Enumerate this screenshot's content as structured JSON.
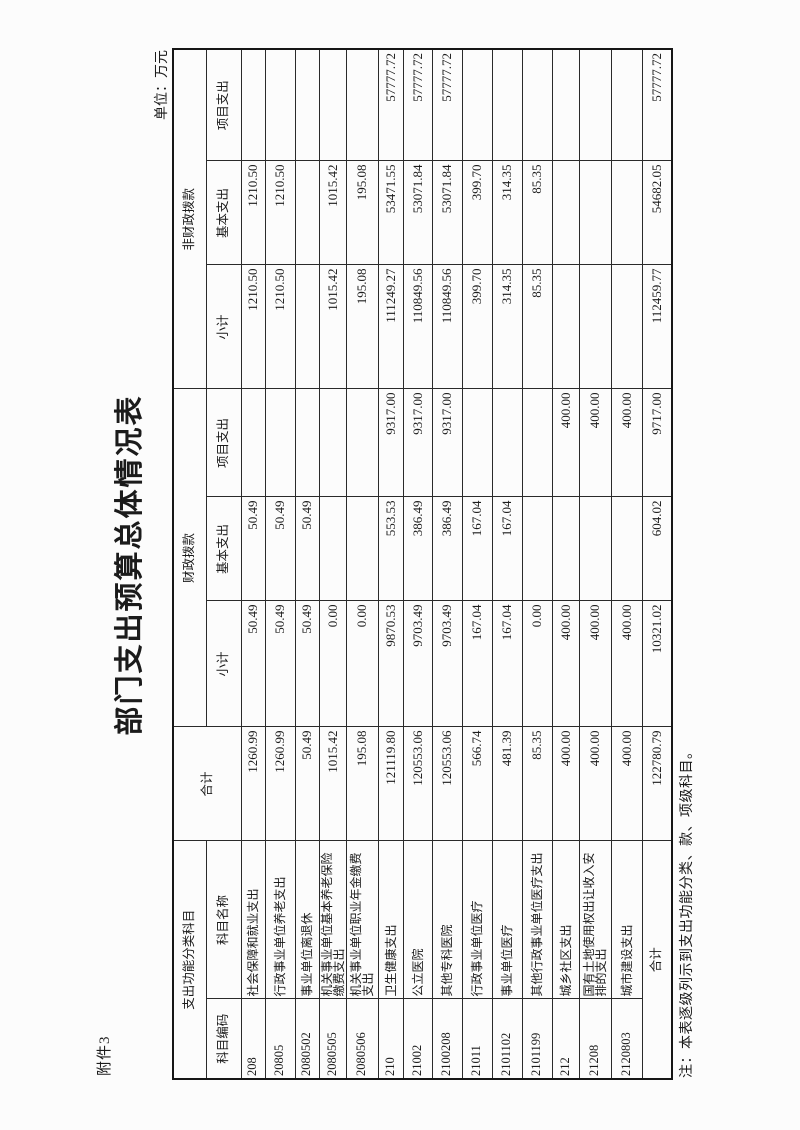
{
  "page": {
    "attachment_label": "附件3",
    "title": "部门支出预算总体情况表",
    "unit_label": "单位：万元",
    "note": "注：本表逐级列示到支出功能分类、款、项级科目。"
  },
  "table": {
    "header": {
      "func_group": "支出功能分类科目",
      "code": "科目编码",
      "name": "科目名称",
      "total": "合计",
      "fiscal_group": "财政拨款",
      "nonfiscal_group": "非财政拨款",
      "subtotal": "小计",
      "basic": "基本支出",
      "project": "项目支出"
    },
    "rows": [
      {
        "code": "208",
        "name": "社会保障和就业支出",
        "total": "1260.99",
        "f_sub": "50.49",
        "f_basic": "50.49",
        "f_proj": "",
        "n_sub": "1210.50",
        "n_basic": "1210.50",
        "n_proj": ""
      },
      {
        "code": "20805",
        "name": "行政事业单位养老支出",
        "total": "1260.99",
        "f_sub": "50.49",
        "f_basic": "50.49",
        "f_proj": "",
        "n_sub": "1210.50",
        "n_basic": "1210.50",
        "n_proj": ""
      },
      {
        "code": "2080502",
        "name": "事业单位离退休",
        "total": "50.49",
        "f_sub": "50.49",
        "f_basic": "50.49",
        "f_proj": "",
        "n_sub": "",
        "n_basic": "",
        "n_proj": ""
      },
      {
        "code": "2080505",
        "name": "机关事业单位基本养老保险缴费支出",
        "total": "1015.42",
        "f_sub": "0.00",
        "f_basic": "",
        "f_proj": "",
        "n_sub": "1015.42",
        "n_basic": "1015.42",
        "n_proj": ""
      },
      {
        "code": "2080506",
        "name": "机关事业单位职业年金缴费支出",
        "total": "195.08",
        "f_sub": "0.00",
        "f_basic": "",
        "f_proj": "",
        "n_sub": "195.08",
        "n_basic": "195.08",
        "n_proj": ""
      },
      {
        "code": "210",
        "name": "卫生健康支出",
        "total": "121119.80",
        "f_sub": "9870.53",
        "f_basic": "553.53",
        "f_proj": "9317.00",
        "n_sub": "111249.27",
        "n_basic": "53471.55",
        "n_proj": "57777.72"
      },
      {
        "code": "21002",
        "name": "公立医院",
        "total": "120553.06",
        "f_sub": "9703.49",
        "f_basic": "386.49",
        "f_proj": "9317.00",
        "n_sub": "110849.56",
        "n_basic": "53071.84",
        "n_proj": "57777.72"
      },
      {
        "code": "2100208",
        "name": "其他专科医院",
        "total": "120553.06",
        "f_sub": "9703.49",
        "f_basic": "386.49",
        "f_proj": "9317.00",
        "n_sub": "110849.56",
        "n_basic": "53071.84",
        "n_proj": "57777.72"
      },
      {
        "code": "21011",
        "name": "行政事业单位医疗",
        "total": "566.74",
        "f_sub": "167.04",
        "f_basic": "167.04",
        "f_proj": "",
        "n_sub": "399.70",
        "n_basic": "399.70",
        "n_proj": ""
      },
      {
        "code": "2101102",
        "name": "事业单位医疗",
        "total": "481.39",
        "f_sub": "167.04",
        "f_basic": "167.04",
        "f_proj": "",
        "n_sub": "314.35",
        "n_basic": "314.35",
        "n_proj": ""
      },
      {
        "code": "2101199",
        "name": "其他行政事业单位医疗支出",
        "total": "85.35",
        "f_sub": "0.00",
        "f_basic": "",
        "f_proj": "",
        "n_sub": "85.35",
        "n_basic": "85.35",
        "n_proj": ""
      },
      {
        "code": "212",
        "name": "城乡社区支出",
        "total": "400.00",
        "f_sub": "400.00",
        "f_basic": "",
        "f_proj": "400.00",
        "n_sub": "",
        "n_basic": "",
        "n_proj": ""
      },
      {
        "code": "21208",
        "name": "国有土地使用权出让收入安排的支出",
        "total": "400.00",
        "f_sub": "400.00",
        "f_basic": "",
        "f_proj": "400.00",
        "n_sub": "",
        "n_basic": "",
        "n_proj": ""
      },
      {
        "code": "2120803",
        "name": "城市建设支出",
        "total": "400.00",
        "f_sub": "400.00",
        "f_basic": "",
        "f_proj": "400.00",
        "n_sub": "",
        "n_basic": "",
        "n_proj": ""
      }
    ],
    "total_row": {
      "label": "合计",
      "total": "122780.79",
      "f_sub": "10321.02",
      "f_basic": "604.02",
      "f_proj": "9717.00",
      "n_sub": "112459.77",
      "n_basic": "54682.05",
      "n_proj": "57777.72"
    }
  }
}
